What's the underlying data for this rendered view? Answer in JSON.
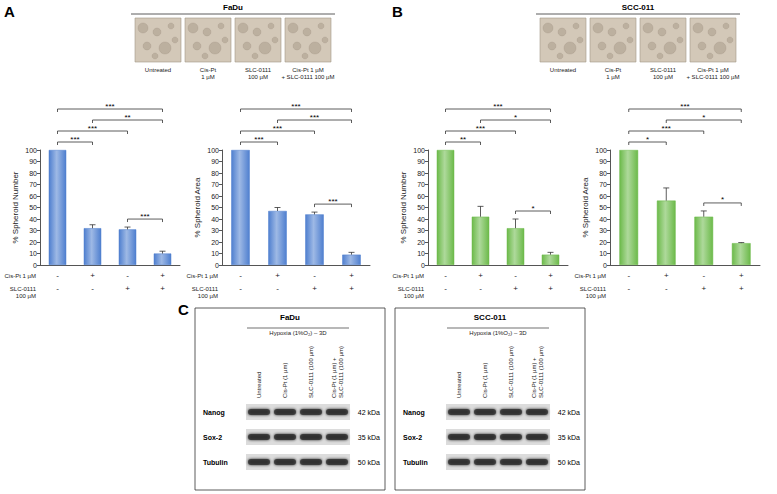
{
  "figure_panels": [
    {
      "label": "A",
      "title": "FaDu",
      "image_captions": [
        "Untreated",
        "Cis-Pt\n1 µM",
        "SLC-0111\n100 µM",
        "Cis-Pt 1 µM\n+ SLC-0111 100 µM"
      ]
    },
    {
      "label": "B",
      "title": "SCC-011",
      "image_captions": [
        "Untreated",
        "Cis-Pt\n1 µM",
        "SLC-0111\n100 µM",
        "Cis-Pt 1 µM\n+ SLC-0111 100 µM"
      ]
    }
  ],
  "chart_data": [
    {
      "type": "bar",
      "y_label": "% Spheroid Number",
      "categories": [
        "-\n-",
        "+\n-",
        "-\n+",
        "+\n+"
      ],
      "row_labels": [
        "Cis-Pt 1 µM",
        "SLC-0111\n100 µM"
      ],
      "values": [
        100,
        32,
        31,
        10
      ],
      "errors": [
        0,
        3,
        2,
        2
      ],
      "color": "#4f7fcf",
      "ylim": [
        0,
        100
      ],
      "yticks": [
        0,
        10,
        20,
        30,
        40,
        50,
        60,
        70,
        80,
        90,
        100
      ],
      "grid": false,
      "significance": [
        {
          "from": 0,
          "to": 1,
          "label": "***"
        },
        {
          "from": 0,
          "to": 2,
          "label": "***"
        },
        {
          "from": 0,
          "to": 3,
          "label": "***"
        },
        {
          "from": 1,
          "to": 3,
          "label": "**"
        },
        {
          "from": 2,
          "to": 3,
          "label": "***"
        }
      ]
    },
    {
      "type": "bar",
      "y_label": "% Spheroid Area",
      "categories": [
        "-\n-",
        "+\n-",
        "-\n+",
        "+\n+"
      ],
      "row_labels": [
        "Cis-Pt 1 µM",
        "SLC-0111\n100 µM"
      ],
      "values": [
        100,
        47,
        44,
        9
      ],
      "errors": [
        0,
        3,
        2,
        2
      ],
      "color": "#4f7fcf",
      "ylim": [
        0,
        100
      ],
      "yticks": [
        0,
        10,
        20,
        30,
        40,
        50,
        60,
        70,
        80,
        90,
        100
      ],
      "grid": false,
      "significance": [
        {
          "from": 0,
          "to": 1,
          "label": "***"
        },
        {
          "from": 0,
          "to": 2,
          "label": "***"
        },
        {
          "from": 0,
          "to": 3,
          "label": "***"
        },
        {
          "from": 1,
          "to": 3,
          "label": "***"
        },
        {
          "from": 2,
          "to": 3,
          "label": "***"
        }
      ]
    },
    {
      "type": "bar",
      "y_label": "% Spheroid Number",
      "categories": [
        "-\n-",
        "+\n-",
        "-\n+",
        "+\n+"
      ],
      "row_labels": [
        "Cis-Pt 1 µM",
        "SLC-0111\n100 µM"
      ],
      "values": [
        100,
        42,
        32,
        9
      ],
      "errors": [
        0,
        9,
        8,
        2
      ],
      "color": "#6cba4a",
      "ylim": [
        0,
        100
      ],
      "yticks": [
        0,
        10,
        20,
        30,
        40,
        50,
        60,
        70,
        80,
        90,
        100
      ],
      "grid": false,
      "significance": [
        {
          "from": 0,
          "to": 1,
          "label": "**"
        },
        {
          "from": 0,
          "to": 2,
          "label": "***"
        },
        {
          "from": 0,
          "to": 3,
          "label": "***"
        },
        {
          "from": 1,
          "to": 3,
          "label": "*"
        },
        {
          "from": 2,
          "to": 3,
          "label": "*"
        }
      ]
    },
    {
      "type": "bar",
      "y_label": "% Spheroid Area",
      "categories": [
        "-\n-",
        "+\n-",
        "-\n+",
        "+\n+"
      ],
      "row_labels": [
        "Cis-Pt 1 µM",
        "SLC-0111\n100 µM"
      ],
      "values": [
        100,
        56,
        42,
        19
      ],
      "errors": [
        0,
        11,
        5,
        0.5
      ],
      "color": "#6cba4a",
      "ylim": [
        0,
        100
      ],
      "yticks": [
        0,
        10,
        20,
        30,
        40,
        50,
        60,
        70,
        80,
        90,
        100
      ],
      "grid": false,
      "significance": [
        {
          "from": 0,
          "to": 1,
          "label": "*"
        },
        {
          "from": 0,
          "to": 2,
          "label": "***"
        },
        {
          "from": 0,
          "to": 3,
          "label": "***"
        },
        {
          "from": 1,
          "to": 3,
          "label": "*"
        },
        {
          "from": 2,
          "to": 3,
          "label": "*"
        }
      ]
    }
  ],
  "blots": {
    "label": "C",
    "panels": [
      {
        "title": "FaDu",
        "condition": "Hypoxia (1%O₂) – 3D",
        "lanes": [
          "Untreated",
          "Cis-Pt (1 µm)",
          "SLC-0111 (100 µm)",
          "Cis-Pt (1 µm) + SLC-0111 (100 µm)"
        ],
        "proteins": [
          {
            "name": "Nanog",
            "size": "42 kDa"
          },
          {
            "name": "Sox-2",
            "size": "35 kDa"
          },
          {
            "name": "Tubulin",
            "size": "50 kDa"
          }
        ]
      },
      {
        "title": "SCC-011",
        "condition": "Hypoxia (1%O₂) – 3D",
        "lanes": [
          "Untreated",
          "Cis-Pt (1 µm)",
          "SLC-0111 (100 µm)",
          "Cis-Pt (1 µm) + SLC-0111 (100 µm)"
        ],
        "proteins": [
          {
            "name": "Nanog",
            "size": "42 kDa"
          },
          {
            "name": "Sox-2",
            "size": "35 kDa"
          },
          {
            "name": "Tubulin",
            "size": "50 kDa"
          }
        ]
      }
    ]
  }
}
